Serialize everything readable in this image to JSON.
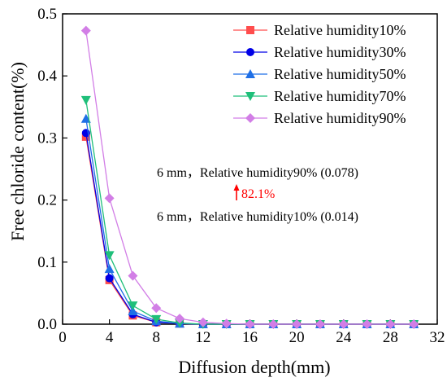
{
  "chart_data": {
    "type": "line",
    "title": "",
    "xlabel": "Diffusion depth(mm)",
    "ylabel": "Free chloride content(%)",
    "xlim": [
      0,
      32
    ],
    "ylim": [
      0,
      0.5
    ],
    "xticks": [
      0,
      4,
      8,
      12,
      16,
      20,
      24,
      28,
      32
    ],
    "yticks": [
      0.0,
      0.1,
      0.2,
      0.3,
      0.4,
      0.5
    ],
    "ytick_labels": [
      "0.0",
      "0.1",
      "0.2",
      "0.3",
      "0.4",
      "0.5"
    ],
    "grid": false,
    "legend_position": "top-right",
    "x": [
      2,
      4,
      6,
      8,
      10,
      12,
      14,
      16,
      18,
      20,
      22,
      24,
      26,
      28,
      30
    ],
    "series": [
      {
        "name": "Relative humidity10%",
        "color": "#ff4d4d",
        "marker": "square",
        "values": [
          0.302,
          0.071,
          0.014,
          0.003,
          0.001,
          0.0,
          0.0,
          0.0,
          0.0,
          0.0,
          0.0,
          0.0,
          0.0,
          0.0,
          0.0
        ]
      },
      {
        "name": "Relative humidity30%",
        "color": "#0000e6",
        "marker": "circle",
        "values": [
          0.308,
          0.074,
          0.016,
          0.003,
          0.001,
          0.0,
          0.0,
          0.0,
          0.0,
          0.0,
          0.0,
          0.0,
          0.0,
          0.0,
          0.0
        ]
      },
      {
        "name": "Relative humidity50%",
        "color": "#1f6fe6",
        "marker": "triangle-up",
        "values": [
          0.331,
          0.089,
          0.021,
          0.005,
          0.001,
          0.0,
          0.0,
          0.0,
          0.0,
          0.0,
          0.0,
          0.0,
          0.0,
          0.0,
          0.0
        ]
      },
      {
        "name": "Relative humidity70%",
        "color": "#1fbf7a",
        "marker": "triangle-down",
        "values": [
          0.361,
          0.111,
          0.03,
          0.008,
          0.002,
          0.0,
          0.0,
          0.0,
          0.0,
          0.0,
          0.0,
          0.0,
          0.0,
          0.0,
          0.0
        ]
      },
      {
        "name": "Relative humidity90%",
        "color": "#d27ee6",
        "marker": "diamond",
        "values": [
          0.473,
          0.203,
          0.078,
          0.026,
          0.009,
          0.003,
          0.001,
          0.0,
          0.0,
          0.0,
          0.0,
          0.0,
          0.0,
          0.0,
          0.0
        ]
      }
    ],
    "annotations": {
      "top": "6 mm，Relative humidity90% (0.078)",
      "increase": "82.1%",
      "bottom": "6 mm，Relative humidity10% (0.014)",
      "arrow_color": "#ff0000"
    }
  }
}
